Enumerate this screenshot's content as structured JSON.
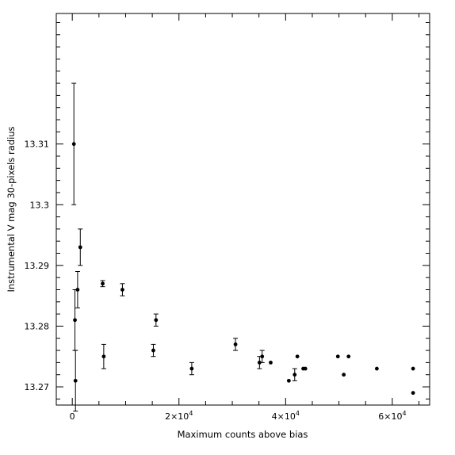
{
  "chart_data": {
    "type": "scatter",
    "xlabel": "Maximum counts above bias",
    "ylabel": "Instrumental V mag 30-pixels radius",
    "xlim": [
      -3000,
      67000
    ],
    "ylim": [
      13.267,
      13.3315
    ],
    "x_major_ticks": [
      0,
      20000,
      40000,
      60000
    ],
    "x_tick_labels": [
      {
        "mantissa": "0",
        "exponent": ""
      },
      {
        "mantissa": "2×10",
        "exponent": "4"
      },
      {
        "mantissa": "4×10",
        "exponent": "4"
      },
      {
        "mantissa": "6×10",
        "exponent": "4"
      }
    ],
    "x_minor_step": 5000,
    "y_major_ticks": [
      13.27,
      13.28,
      13.29,
      13.3,
      13.31
    ],
    "y_tick_labels": [
      "13.27",
      "13.28",
      "13.29",
      "13.3",
      "13.31"
    ],
    "y_minor_step": 0.002,
    "grid": false,
    "points": [
      {
        "x": 300,
        "y": 13.31,
        "err": 0.01
      },
      {
        "x": 500,
        "y": 13.281,
        "err": 0.005
      },
      {
        "x": 600,
        "y": 13.271,
        "err": 0.005
      },
      {
        "x": 1000,
        "y": 13.286,
        "err": 0.003
      },
      {
        "x": 1500,
        "y": 13.293,
        "err": 0.003
      },
      {
        "x": 5700,
        "y": 13.287,
        "err": 0.0005
      },
      {
        "x": 5900,
        "y": 13.275,
        "err": 0.002
      },
      {
        "x": 9400,
        "y": 13.286,
        "err": 0.001
      },
      {
        "x": 15200,
        "y": 13.276,
        "err": 0.001
      },
      {
        "x": 15700,
        "y": 13.281,
        "err": 0.001
      },
      {
        "x": 22400,
        "y": 13.273,
        "err": 0.001
      },
      {
        "x": 30600,
        "y": 13.277,
        "err": 0.001
      },
      {
        "x": 35100,
        "y": 13.274,
        "err": 0.001
      },
      {
        "x": 35600,
        "y": 13.275,
        "err": 0.001
      },
      {
        "x": 37200,
        "y": 13.274,
        "err": 0
      },
      {
        "x": 40600,
        "y": 13.271,
        "err": 0
      },
      {
        "x": 41700,
        "y": 13.272,
        "err": 0.001
      },
      {
        "x": 42200,
        "y": 13.275,
        "err": 0
      },
      {
        "x": 43300,
        "y": 13.273,
        "err": 0
      },
      {
        "x": 43700,
        "y": 13.273,
        "err": 0
      },
      {
        "x": 49800,
        "y": 13.275,
        "err": 0
      },
      {
        "x": 50900,
        "y": 13.272,
        "err": 0
      },
      {
        "x": 51800,
        "y": 13.275,
        "err": 0
      },
      {
        "x": 57100,
        "y": 13.273,
        "err": 0
      },
      {
        "x": 63900,
        "y": 13.273,
        "err": 0
      },
      {
        "x": 63900,
        "y": 13.269,
        "err": 0
      }
    ]
  }
}
